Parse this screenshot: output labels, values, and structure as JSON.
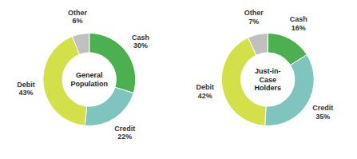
{
  "chart_data": [
    {
      "type": "donut",
      "title": "General\nPopulation",
      "values": [
        30,
        22,
        43,
        6
      ],
      "value_labels": [
        "Cash\n30%",
        "Credit\n22%",
        "Debit\n43%",
        "Other\n6%"
      ],
      "colors": [
        "#4caf50",
        "#80c4c0",
        "#d4e04a",
        "#c0c0c0"
      ],
      "data_labels": true
    },
    {
      "type": "donut",
      "title": "Just-in-\nCase\nHolders",
      "values": [
        16,
        35,
        42,
        7
      ],
      "value_labels": [
        "Cash\n16%",
        "Credit\n35%",
        "Debit\n42%",
        "Other\n7%"
      ],
      "colors": [
        "#4caf50",
        "#80c4c0",
        "#d4e04a",
        "#c0c0c0"
      ],
      "data_labels": true
    }
  ]
}
